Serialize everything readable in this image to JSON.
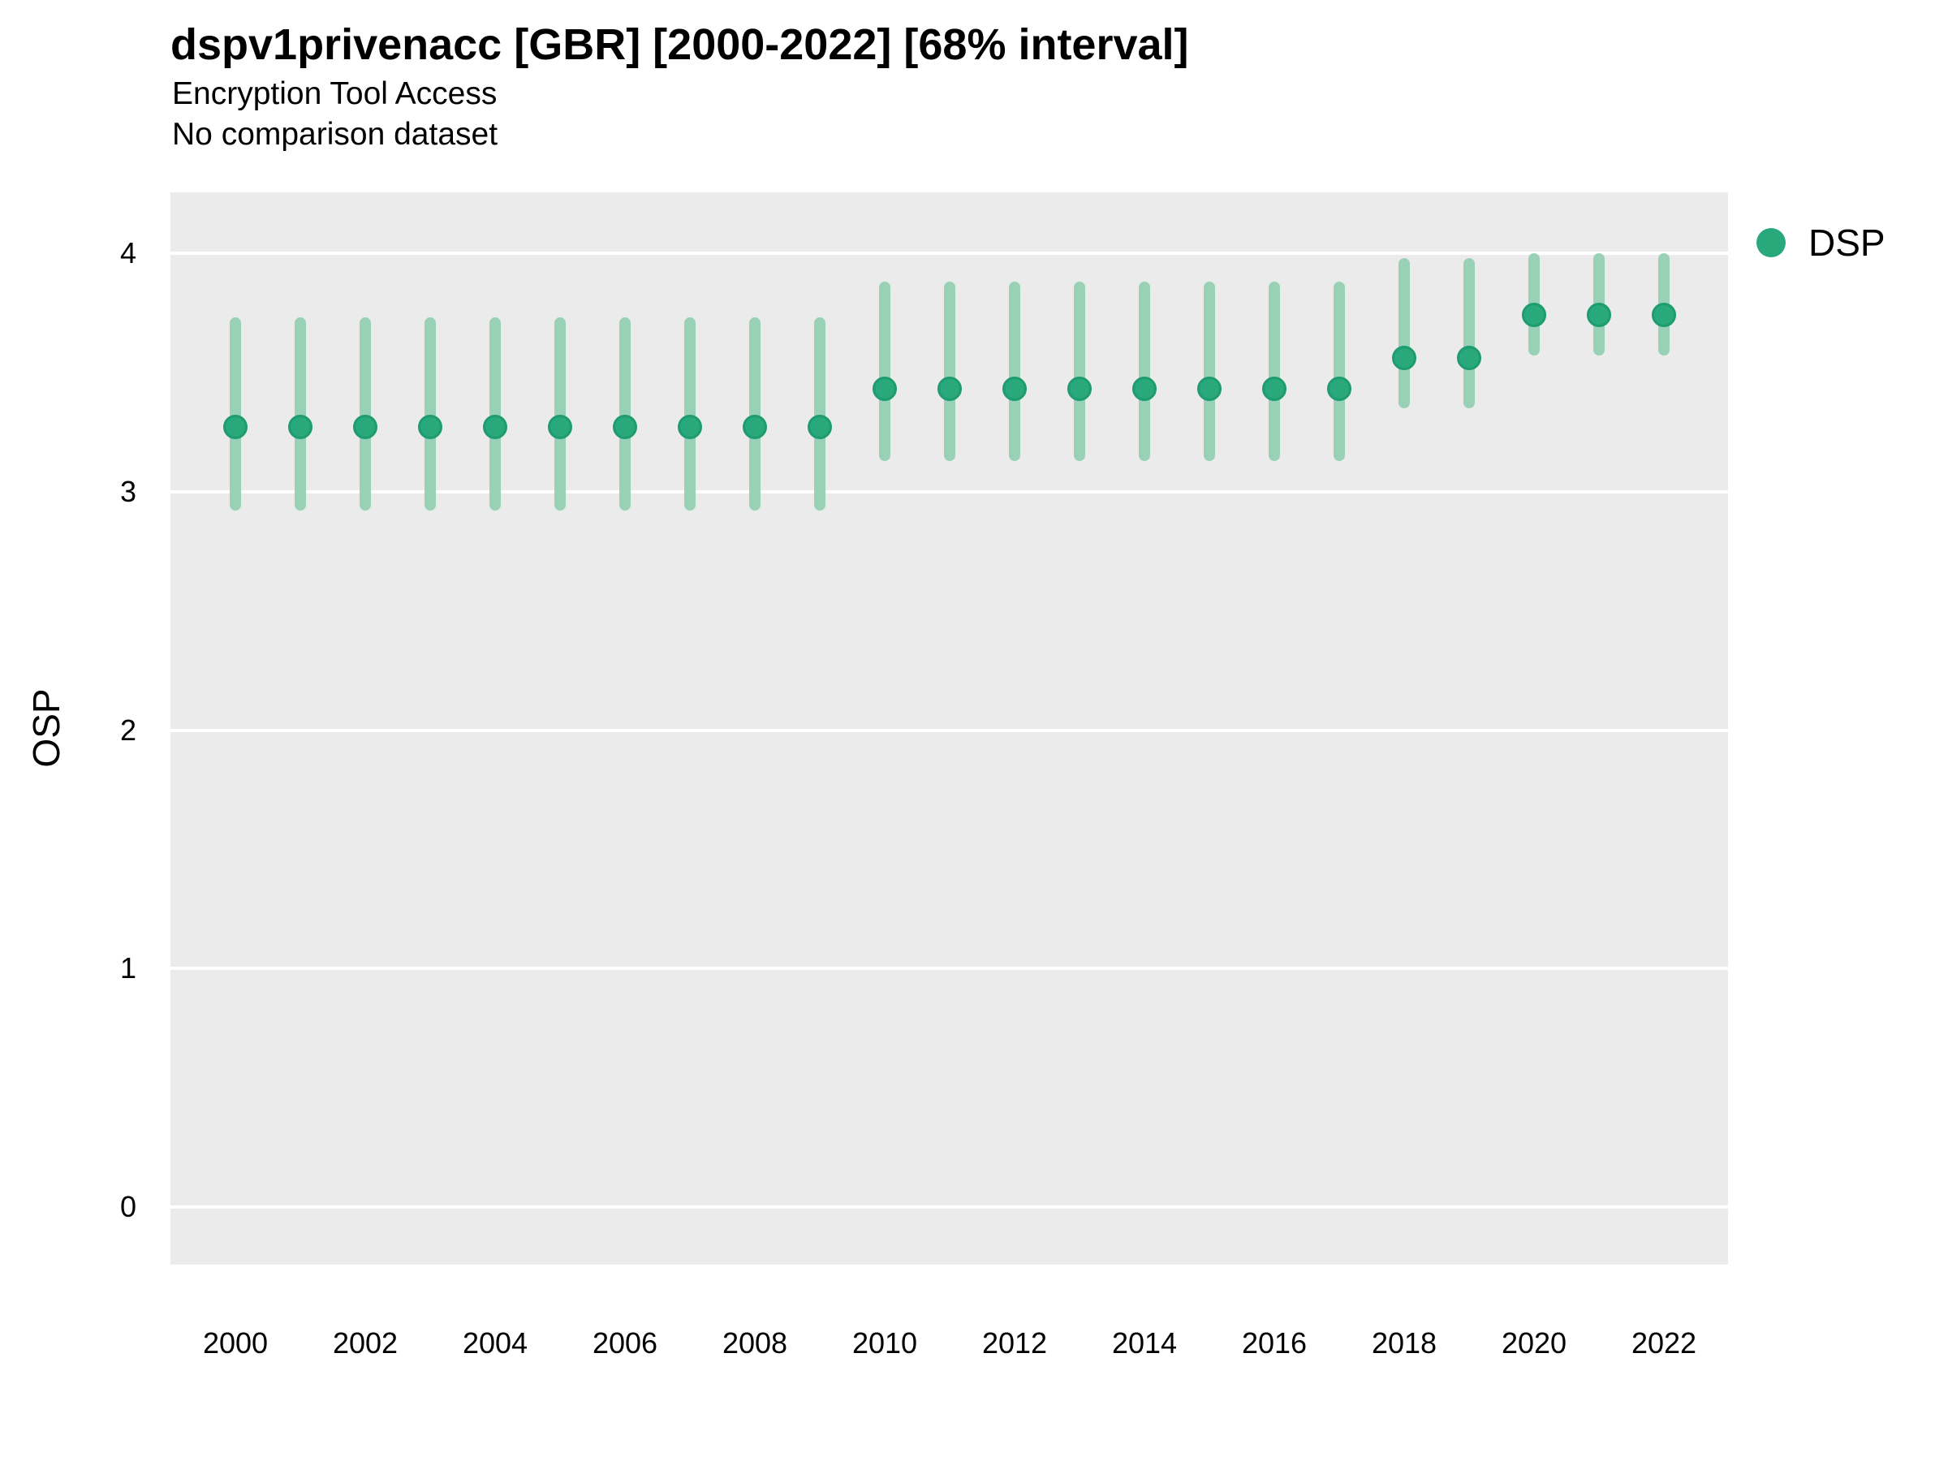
{
  "header": {
    "title": "dspv1privenacc [GBR] [2000-2022] [68% interval]",
    "subtitle": "Encryption Tool Access",
    "comparison_note": "No comparison dataset"
  },
  "legend": {
    "label": "DSP",
    "position": "right-top"
  },
  "colors": {
    "point": "#29A87C",
    "point_border": "#1E9C70",
    "interval": "#98D1B5",
    "panel_bg": "#EBEBEB",
    "grid": "#FFFFFF",
    "text": "#000000"
  },
  "chart_data": {
    "type": "scatter",
    "title": "dspv1privenacc [GBR] [2000-2022] [68% interval]",
    "subtitle": "Encryption Tool Access",
    "note": "No comparison dataset",
    "xlabel": "",
    "ylabel": "OSP",
    "ylim": [
      -0.25,
      4.25
    ],
    "yticks": [
      0,
      1,
      2,
      3,
      4
    ],
    "xticks": [
      2000,
      2002,
      2004,
      2006,
      2008,
      2010,
      2012,
      2014,
      2016,
      2018,
      2020,
      2022
    ],
    "grid": "major-horizontal-white-on-gray",
    "legend_position": "right",
    "interval_level": "68%",
    "series": [
      {
        "name": "DSP",
        "points": [
          {
            "year": 2000,
            "est": 3.27,
            "lo": 2.92,
            "hi": 3.73
          },
          {
            "year": 2001,
            "est": 3.27,
            "lo": 2.92,
            "hi": 3.73
          },
          {
            "year": 2002,
            "est": 3.27,
            "lo": 2.92,
            "hi": 3.73
          },
          {
            "year": 2003,
            "est": 3.27,
            "lo": 2.92,
            "hi": 3.73
          },
          {
            "year": 2004,
            "est": 3.27,
            "lo": 2.92,
            "hi": 3.73
          },
          {
            "year": 2005,
            "est": 3.27,
            "lo": 2.92,
            "hi": 3.73
          },
          {
            "year": 2006,
            "est": 3.27,
            "lo": 2.92,
            "hi": 3.73
          },
          {
            "year": 2007,
            "est": 3.27,
            "lo": 2.92,
            "hi": 3.73
          },
          {
            "year": 2008,
            "est": 3.27,
            "lo": 2.92,
            "hi": 3.73
          },
          {
            "year": 2009,
            "est": 3.27,
            "lo": 2.92,
            "hi": 3.73
          },
          {
            "year": 2010,
            "est": 3.43,
            "lo": 3.13,
            "hi": 3.88
          },
          {
            "year": 2011,
            "est": 3.43,
            "lo": 3.13,
            "hi": 3.88
          },
          {
            "year": 2012,
            "est": 3.43,
            "lo": 3.13,
            "hi": 3.88
          },
          {
            "year": 2013,
            "est": 3.43,
            "lo": 3.13,
            "hi": 3.88
          },
          {
            "year": 2014,
            "est": 3.43,
            "lo": 3.13,
            "hi": 3.88
          },
          {
            "year": 2015,
            "est": 3.43,
            "lo": 3.13,
            "hi": 3.88
          },
          {
            "year": 2016,
            "est": 3.43,
            "lo": 3.13,
            "hi": 3.88
          },
          {
            "year": 2017,
            "est": 3.43,
            "lo": 3.13,
            "hi": 3.88
          },
          {
            "year": 2018,
            "est": 3.56,
            "lo": 3.35,
            "hi": 3.98
          },
          {
            "year": 2019,
            "est": 3.56,
            "lo": 3.35,
            "hi": 3.98
          },
          {
            "year": 2020,
            "est": 3.74,
            "lo": 3.57,
            "hi": 4.0
          },
          {
            "year": 2021,
            "est": 3.74,
            "lo": 3.57,
            "hi": 4.0
          },
          {
            "year": 2022,
            "est": 3.74,
            "lo": 3.57,
            "hi": 4.0
          }
        ]
      }
    ]
  }
}
